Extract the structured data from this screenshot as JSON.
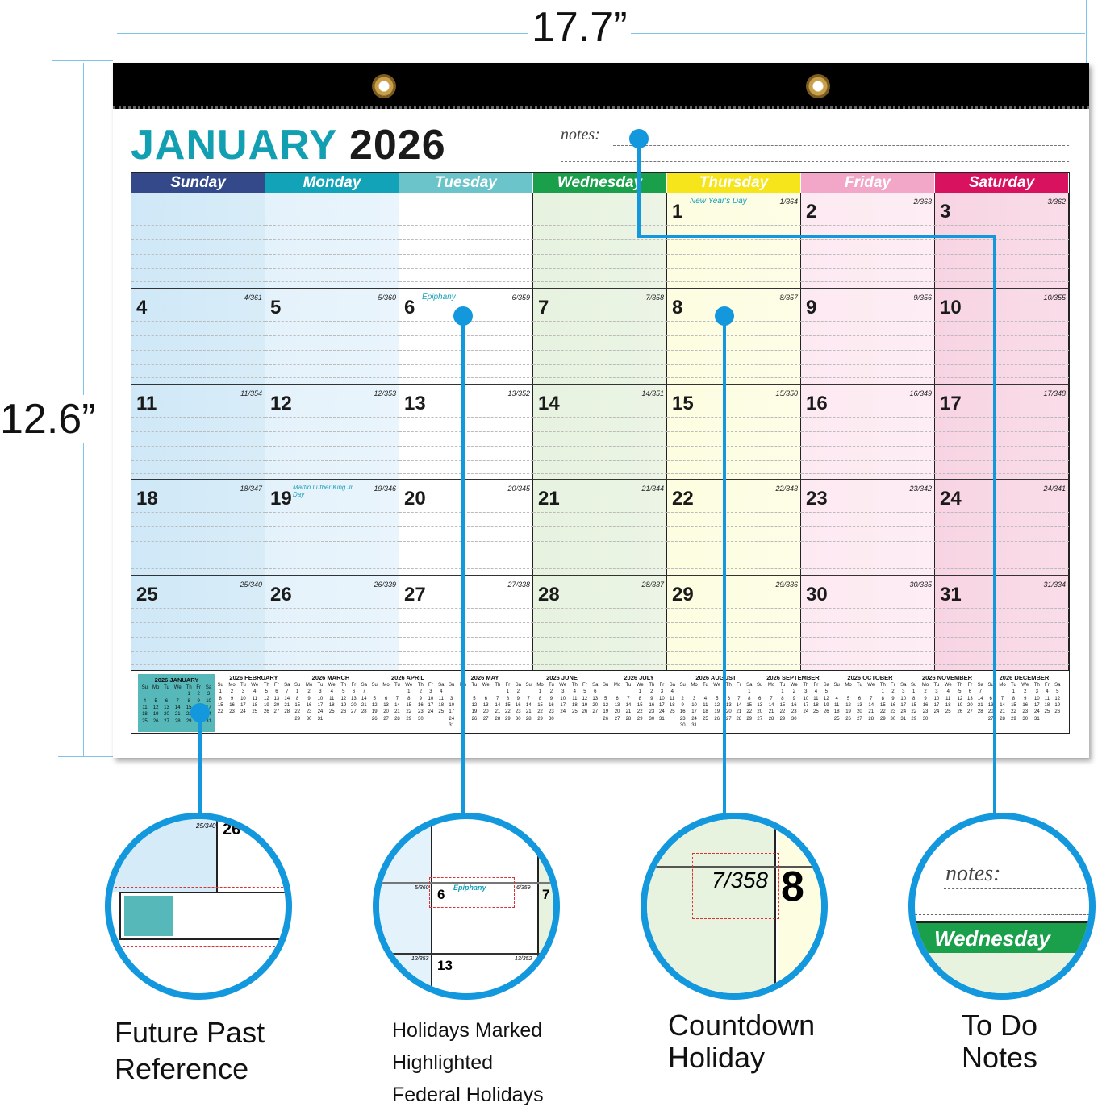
{
  "dimensions": {
    "width": "17.7”",
    "height": "12.6”"
  },
  "calendar": {
    "month": "JANUARY",
    "year": "2026",
    "notes_label": "notes:",
    "weekdays": [
      {
        "label": "Sunday",
        "color": "#33498a",
        "bg": "#cfe8f7"
      },
      {
        "label": "Monday",
        "color": "#12a3b8",
        "bg": "#e4f2fb"
      },
      {
        "label": "Tuesday",
        "color": "#6bc4c9",
        "bg": "#ffffff"
      },
      {
        "label": "Wednesday",
        "color": "#1aa04a",
        "bg": "#e7f2df"
      },
      {
        "label": "Thursday",
        "color": "#f5e51a",
        "bg": "#fdfde1"
      },
      {
        "label": "Friday",
        "color": "#f2a6c8",
        "bg": "#fde9f1"
      },
      {
        "label": "Saturday",
        "color": "#d8125f",
        "bg": "#f8d4e3"
      }
    ],
    "first_weekday": 4,
    "days": [
      {
        "day": "1",
        "countdown": "1/364",
        "holiday": "New Year's Day"
      },
      {
        "day": "2",
        "countdown": "2/363"
      },
      {
        "day": "3",
        "countdown": "3/362"
      },
      {
        "day": "4",
        "countdown": "4/361"
      },
      {
        "day": "5",
        "countdown": "5/360"
      },
      {
        "day": "6",
        "countdown": "6/359",
        "holiday": "Epiphany"
      },
      {
        "day": "7",
        "countdown": "7/358"
      },
      {
        "day": "8",
        "countdown": "8/357"
      },
      {
        "day": "9",
        "countdown": "9/356"
      },
      {
        "day": "10",
        "countdown": "10/355"
      },
      {
        "day": "11",
        "countdown": "11/354"
      },
      {
        "day": "12",
        "countdown": "12/353"
      },
      {
        "day": "13",
        "countdown": "13/352"
      },
      {
        "day": "14",
        "countdown": "14/351"
      },
      {
        "day": "15",
        "countdown": "15/350"
      },
      {
        "day": "16",
        "countdown": "16/349"
      },
      {
        "day": "17",
        "countdown": "17/348"
      },
      {
        "day": "18",
        "countdown": "18/347"
      },
      {
        "day": "19",
        "countdown": "19/346",
        "holiday": "Martin Luther King Jr. Day"
      },
      {
        "day": "20",
        "countdown": "20/345"
      },
      {
        "day": "21",
        "countdown": "21/344"
      },
      {
        "day": "22",
        "countdown": "22/343"
      },
      {
        "day": "23",
        "countdown": "23/342"
      },
      {
        "day": "24",
        "countdown": "24/341"
      },
      {
        "day": "25",
        "countdown": "25/340"
      },
      {
        "day": "26",
        "countdown": "26/339"
      },
      {
        "day": "27",
        "countdown": "27/338"
      },
      {
        "day": "28",
        "countdown": "28/337"
      },
      {
        "day": "29",
        "countdown": "29/336"
      },
      {
        "day": "30",
        "countdown": "30/335"
      },
      {
        "day": "31",
        "countdown": "31/334"
      }
    ],
    "mini_weekdays": [
      "Su",
      "Mo",
      "Tu",
      "We",
      "Th",
      "Fr",
      "Sa"
    ],
    "mini_months": [
      {
        "title": "2026 JANUARY",
        "first_weekday": 4,
        "days": 31,
        "current": true
      },
      {
        "title": "2026 FEBRUARY",
        "first_weekday": 0,
        "days": 28
      },
      {
        "title": "2026 MARCH",
        "first_weekday": 0,
        "days": 31
      },
      {
        "title": "2026 APRIL",
        "first_weekday": 3,
        "days": 30
      },
      {
        "title": "2026 MAY",
        "first_weekday": 5,
        "days": 31
      },
      {
        "title": "2026 JUNE",
        "first_weekday": 1,
        "days": 30
      },
      {
        "title": "2026 JULY",
        "first_weekday": 3,
        "days": 31
      },
      {
        "title": "2026 AUGUST",
        "first_weekday": 6,
        "days": 31
      },
      {
        "title": "2026 SEPTEMBER",
        "first_weekday": 2,
        "days": 30
      },
      {
        "title": "2026 OCTOBER",
        "first_weekday": 4,
        "days": 31
      },
      {
        "title": "2026 NOVEMBER",
        "first_weekday": 0,
        "days": 30
      },
      {
        "title": "2026 DECEMBER",
        "first_weekday": 2,
        "days": 31
      }
    ]
  },
  "callouts": [
    {
      "lines": [
        "Future  Past",
        "Reference"
      ]
    },
    {
      "lines": [
        "Holidays Marked",
        "Highlighted",
        "Federal Holidays"
      ]
    },
    {
      "lines": [
        "Countdown",
        "Holiday"
      ]
    },
    {
      "lines": [
        "To Do",
        "Notes"
      ]
    }
  ],
  "zoom_details": {
    "countdown_example": "7/358",
    "day_example": "8",
    "holiday_example": "Epiphany",
    "day6": "6",
    "day7": "7",
    "day13": "13",
    "cd5": "5/360",
    "cd6": "6/359",
    "cd12": "12/353",
    "cd13": "13/352",
    "cd25": "25/340",
    "day26": "26",
    "notes": "notes:",
    "weekday": "Wednesday"
  },
  "accent_color": "#1398dd"
}
